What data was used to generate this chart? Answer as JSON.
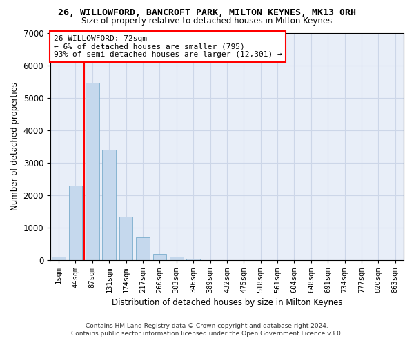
{
  "title": "26, WILLOWFORD, BANCROFT PARK, MILTON KEYNES, MK13 0RH",
  "subtitle": "Size of property relative to detached houses in Milton Keynes",
  "xlabel": "Distribution of detached houses by size in Milton Keynes",
  "ylabel": "Number of detached properties",
  "footer_line1": "Contains HM Land Registry data © Crown copyright and database right 2024.",
  "footer_line2": "Contains public sector information licensed under the Open Government Licence v3.0.",
  "bar_labels": [
    "1sqm",
    "44sqm",
    "87sqm",
    "131sqm",
    "174sqm",
    "217sqm",
    "260sqm",
    "303sqm",
    "346sqm",
    "389sqm",
    "432sqm",
    "475sqm",
    "518sqm",
    "561sqm",
    "604sqm",
    "648sqm",
    "691sqm",
    "734sqm",
    "777sqm",
    "820sqm",
    "863sqm"
  ],
  "bar_values": [
    100,
    2300,
    5450,
    3400,
    1350,
    700,
    200,
    100,
    50,
    0,
    0,
    0,
    0,
    0,
    0,
    0,
    0,
    0,
    0,
    0,
    0
  ],
  "bar_color": "#c5d8ed",
  "bar_edge_color": "#7aadcc",
  "grid_color": "#ccd6e8",
  "bg_color": "#e8eef8",
  "annotation_text": "26 WILLOWFORD: 72sqm\n← 6% of detached houses are smaller (795)\n93% of semi-detached houses are larger (12,301) →",
  "annotation_box_color": "white",
  "annotation_box_edge": "red",
  "vline_color": "red",
  "vline_x": 1.5,
  "ylim": [
    0,
    7000
  ],
  "yticks": [
    0,
    1000,
    2000,
    3000,
    4000,
    5000,
    6000,
    7000
  ]
}
